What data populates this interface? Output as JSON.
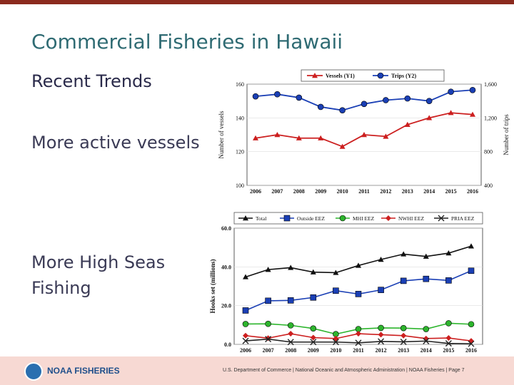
{
  "slide": {
    "title": "Commercial Fisheries in Hawaii",
    "subtitle": "Recent Trends",
    "bullet_1": "More active vessels",
    "bullet_2": "More High Seas Fishing"
  },
  "footer": {
    "logo_text": "NOAA FISHERIES",
    "text": "U.S. Department of Commerce | National Oceanic and Atmospheric Administration | NOAA Fisheries | Page 7"
  },
  "chart_data": [
    {
      "type": "line",
      "x": [
        "2006",
        "2007",
        "2008",
        "2009",
        "2010",
        "2011",
        "2012",
        "2013",
        "2014",
        "2015",
        "2016"
      ],
      "ylabel": "Number of vessels",
      "y2label": "Number of trips",
      "ylim": [
        100,
        160
      ],
      "y2lim": [
        400,
        1600
      ],
      "yticks": [
        "100",
        "120",
        "140",
        "160"
      ],
      "y2ticks": [
        "400",
        "800",
        "1,200",
        "1,600"
      ],
      "legend_position": "top",
      "grid": true,
      "series": [
        {
          "name": "Vessels (Y1)",
          "axis": "y1",
          "color": "#cc1f1f",
          "marker": "triangle",
          "values": [
            128,
            130,
            128,
            128,
            123,
            130,
            129,
            136,
            140,
            143,
            142
          ]
        },
        {
          "name": "Trips (Y2)",
          "axis": "y2",
          "color": "#1a3fb5",
          "marker": "circle",
          "values": [
            1455,
            1480,
            1440,
            1330,
            1290,
            1365,
            1410,
            1430,
            1400,
            1510,
            1530
          ]
        }
      ]
    },
    {
      "type": "line",
      "x": [
        "2006",
        "2007",
        "2008",
        "2009",
        "2010",
        "2011",
        "2012",
        "2013",
        "2014",
        "2015",
        "2016"
      ],
      "ylabel": "Hooks set (millions)",
      "ylim": [
        0,
        60
      ],
      "yticks": [
        "0.0",
        "20.0",
        "40.0",
        "60.0"
      ],
      "legend_position": "top",
      "grid": true,
      "series": [
        {
          "name": "Total",
          "color": "#111111",
          "marker": "triangle",
          "values": [
            34.8,
            38.6,
            39.6,
            37.3,
            37.0,
            40.7,
            43.8,
            46.6,
            45.4,
            47.1,
            50.7
          ]
        },
        {
          "name": "Outside EEZ",
          "color": "#1a3fb5",
          "marker": "square",
          "values": [
            17.5,
            22.5,
            22.7,
            24.2,
            27.7,
            26.0,
            28.1,
            32.8,
            33.8,
            33.0,
            38.0
          ]
        },
        {
          "name": "MHI EEZ",
          "color": "#2db52d",
          "marker": "circle",
          "values": [
            10.5,
            10.6,
            9.8,
            8.2,
            5.3,
            7.9,
            8.5,
            8.4,
            7.9,
            10.9,
            10.4
          ]
        },
        {
          "name": "NWHI EEZ",
          "color": "#cc1f1f",
          "marker": "diamond",
          "values": [
            4.5,
            3.2,
            5.5,
            3.5,
            3.0,
            5.5,
            5.0,
            4.5,
            3.0,
            3.3,
            1.8
          ]
        },
        {
          "name": "PRIA EEZ",
          "color": "#222222",
          "marker": "x",
          "values": [
            1.8,
            2.7,
            1.2,
            1.2,
            1.2,
            0.8,
            1.5,
            1.3,
            1.7,
            0.5,
            0.3
          ]
        }
      ]
    }
  ]
}
